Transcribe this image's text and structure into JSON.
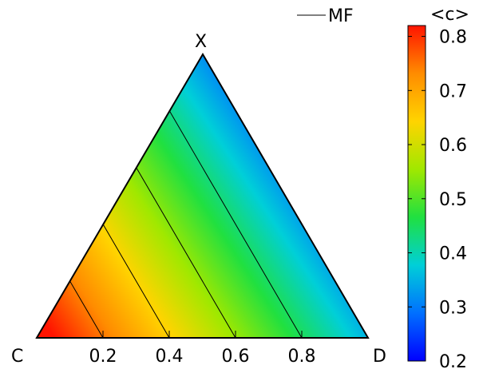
{
  "chart_data": {
    "type": "heatmap",
    "subtype": "ternary-contour",
    "corner_labels": {
      "left": "C",
      "right": "D",
      "top": "X"
    },
    "base_axis": {
      "ticks": [
        0.2,
        0.4,
        0.6,
        0.8
      ],
      "tick_labels": [
        "0.2",
        "0.4",
        "0.6",
        "0.8"
      ],
      "range": [
        0,
        1
      ]
    },
    "colorbar": {
      "title": "<c>",
      "range": [
        0.2,
        0.82
      ],
      "ticks": [
        0.2,
        0.3,
        0.4,
        0.5,
        0.6,
        0.7,
        0.8
      ],
      "tick_labels": [
        "0.2",
        "0.3",
        "0.4",
        "0.5",
        "0.6",
        "0.7",
        "0.8"
      ],
      "colormap": [
        "#0000ff",
        "#0070ff",
        "#00cfd8",
        "#20e040",
        "#a0e800",
        "#ffd400",
        "#ff8c00",
        "#ff1400"
      ]
    },
    "legend": {
      "position": "top-right",
      "entries": [
        {
          "label": "MF",
          "style": "line",
          "color": "#000000"
        }
      ]
    },
    "contour_lines": {
      "series_name": "MF",
      "base_intercepts": [
        0.2,
        0.4,
        0.6,
        0.8
      ]
    }
  }
}
